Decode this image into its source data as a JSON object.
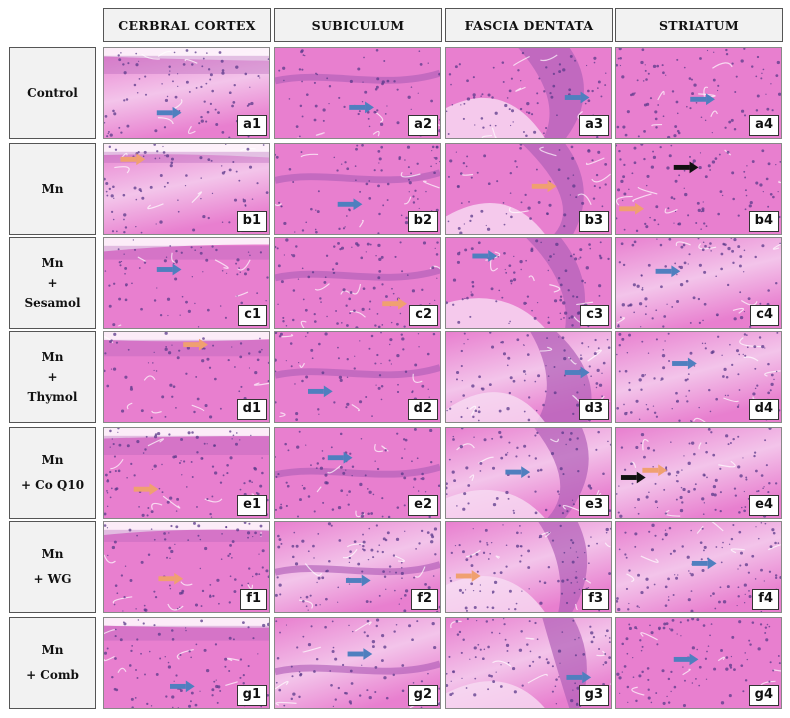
{
  "figure": {
    "columns": [
      "CERBRAL CORTEX",
      "SUBICULUM",
      "FASCIA DENTATA",
      "STRIATUM"
    ],
    "rows": [
      {
        "label_lines": [
          "Control"
        ],
        "panels": [
          {
            "label": "a1",
            "arrows": [
              {
                "color": "blue",
                "dir": "right"
              }
            ]
          },
          {
            "label": "a2",
            "arrows": [
              {
                "color": "blue",
                "dir": "right"
              }
            ]
          },
          {
            "label": "a3",
            "arrows": [
              {
                "color": "blue",
                "dir": "right"
              }
            ]
          },
          {
            "label": "a4",
            "arrows": [
              {
                "color": "blue",
                "dir": "right"
              }
            ]
          }
        ]
      },
      {
        "label_lines": [
          "Mn"
        ],
        "panels": [
          {
            "label": "b1",
            "arrows": [
              {
                "color": "orange",
                "dir": "right"
              }
            ]
          },
          {
            "label": "b2",
            "arrows": [
              {
                "color": "blue",
                "dir": "right"
              }
            ]
          },
          {
            "label": "b3",
            "arrows": [
              {
                "color": "orange",
                "dir": "right"
              }
            ]
          },
          {
            "label": "b4",
            "arrows": [
              {
                "color": "black",
                "dir": "right"
              },
              {
                "color": "orange",
                "dir": "right"
              }
            ]
          }
        ]
      },
      {
        "label_lines": [
          "Mn",
          "+",
          "Sesamol"
        ],
        "panels": [
          {
            "label": "c1",
            "arrows": [
              {
                "color": "blue",
                "dir": "right"
              }
            ]
          },
          {
            "label": "c2",
            "arrows": [
              {
                "color": "orange",
                "dir": "right"
              }
            ]
          },
          {
            "label": "c3",
            "arrows": [
              {
                "color": "blue",
                "dir": "right"
              }
            ]
          },
          {
            "label": "c4",
            "arrows": [
              {
                "color": "blue",
                "dir": "right"
              }
            ]
          }
        ]
      },
      {
        "label_lines": [
          "Mn",
          "+",
          "Thymol"
        ],
        "panels": [
          {
            "label": "d1",
            "arrows": [
              {
                "color": "orange",
                "dir": "right"
              }
            ]
          },
          {
            "label": "d2",
            "arrows": [
              {
                "color": "blue",
                "dir": "right"
              }
            ]
          },
          {
            "label": "d3",
            "arrows": [
              {
                "color": "blue",
                "dir": "right"
              }
            ]
          },
          {
            "label": "d4",
            "arrows": [
              {
                "color": "blue",
                "dir": "right"
              }
            ]
          }
        ]
      },
      {
        "label_lines": [
          "Mn",
          "+ Co Q10"
        ],
        "panels": [
          {
            "label": "e1",
            "arrows": [
              {
                "color": "orange",
                "dir": "right"
              }
            ]
          },
          {
            "label": "e2",
            "arrows": [
              {
                "color": "blue",
                "dir": "right"
              }
            ]
          },
          {
            "label": "e3",
            "arrows": [
              {
                "color": "blue",
                "dir": "right"
              }
            ]
          },
          {
            "label": "e4",
            "arrows": [
              {
                "color": "black",
                "dir": "right"
              },
              {
                "color": "orange",
                "dir": "right"
              }
            ]
          }
        ]
      },
      {
        "label_lines": [
          "Mn",
          "+ WG"
        ],
        "panels": [
          {
            "label": "f1",
            "arrows": [
              {
                "color": "orange",
                "dir": "right"
              }
            ]
          },
          {
            "label": "f2",
            "arrows": [
              {
                "color": "blue",
                "dir": "right"
              }
            ]
          },
          {
            "label": "f3",
            "arrows": [
              {
                "color": "orange",
                "dir": "right"
              }
            ]
          },
          {
            "label": "f4",
            "arrows": [
              {
                "color": "blue",
                "dir": "right"
              }
            ]
          }
        ]
      },
      {
        "label_lines": [
          "Mn",
          "+ Comb"
        ],
        "panels": [
          {
            "label": "g1",
            "arrows": [
              {
                "color": "blue",
                "dir": "right"
              }
            ]
          },
          {
            "label": "g2",
            "arrows": [
              {
                "color": "blue",
                "dir": "right"
              }
            ]
          },
          {
            "label": "g3",
            "arrows": [
              {
                "color": "blue",
                "dir": "right"
              }
            ]
          },
          {
            "label": "g4",
            "arrows": [
              {
                "color": "blue",
                "dir": "right"
              }
            ]
          }
        ]
      }
    ]
  },
  "colors": {
    "blue_arrow": "#4f7fbf",
    "orange_arrow": "#f0a070",
    "black_arrow": "#111111",
    "tissue_base": "#e87fcf",
    "tissue_light": "#f3c4ea",
    "tissue_dark": "#b160b8",
    "nuclei": "#5a3a8a",
    "header_bg": "#f2f2f2"
  }
}
